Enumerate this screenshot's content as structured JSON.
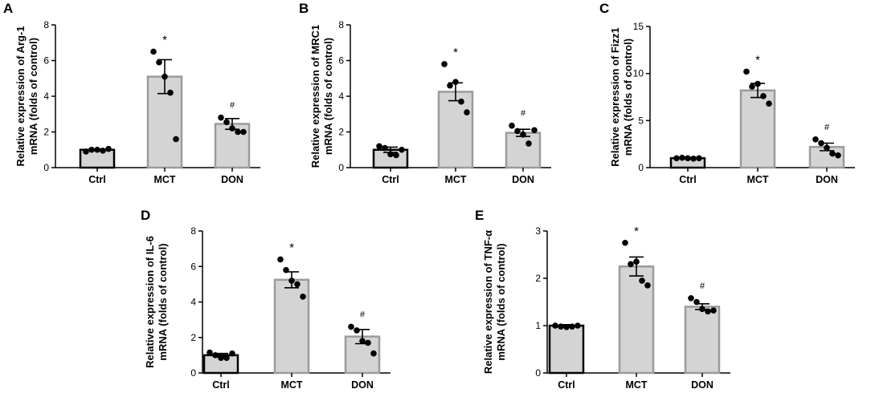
{
  "chart_data": [
    {
      "type": "bar",
      "panel": "A",
      "ylabel_line1": "Relative expression of Arg-1",
      "ylabel_line2": "mRNA (folds of control)",
      "categories": [
        "Ctrl",
        "MCT",
        "DON"
      ],
      "ylim": [
        0,
        8
      ],
      "yticks": [
        "0",
        "2",
        "4",
        "6",
        "8"
      ],
      "means": [
        1.0,
        5.1,
        2.45
      ],
      "sem": [
        0.05,
        0.95,
        0.3
      ],
      "points": [
        [
          0.9,
          1.0,
          1.0,
          0.95,
          1.05
        ],
        [
          6.5,
          5.9,
          5.1,
          4.2,
          1.6
        ],
        [
          2.8,
          2.55,
          2.2,
          2.0,
          2.0
        ]
      ],
      "annotations": [
        "",
        "*",
        "#"
      ],
      "bar_edge_colors": [
        "#000000",
        "#9b9b9b",
        "#9b9b9b"
      ]
    },
    {
      "type": "bar",
      "panel": "B",
      "ylabel_line1": "Relative expression of MRC1",
      "ylabel_line2": "mRNA (folds of control)",
      "categories": [
        "Ctrl",
        "MCT",
        "DON"
      ],
      "ylim": [
        0,
        8
      ],
      "yticks": [
        "0",
        "2",
        "4",
        "6",
        "8"
      ],
      "means": [
        1.0,
        4.25,
        1.95
      ],
      "sem": [
        0.15,
        0.5,
        0.2
      ],
      "points": [
        [
          1.2,
          1.1,
          0.75,
          0.7,
          1.0
        ],
        [
          5.8,
          4.6,
          4.8,
          3.7,
          3.1
        ],
        [
          2.35,
          2.05,
          1.85,
          1.35,
          2.1
        ]
      ],
      "annotations": [
        "",
        "*",
        "#"
      ],
      "bar_edge_colors": [
        "#000000",
        "#9b9b9b",
        "#9b9b9b"
      ]
    },
    {
      "type": "bar",
      "panel": "C",
      "ylabel_line1": "Relative expression of Fizz1",
      "ylabel_line2": "mRNA (folds of control)",
      "categories": [
        "Ctrl",
        "MCT",
        "DON"
      ],
      "ylim": [
        0,
        15
      ],
      "yticks": [
        "0",
        "5",
        "10",
        "15"
      ],
      "means": [
        1.0,
        8.2,
        2.2
      ],
      "sem": [
        0.05,
        0.75,
        0.4
      ],
      "points": [
        [
          1.0,
          1.05,
          1.0,
          0.95,
          1.0
        ],
        [
          10.2,
          8.6,
          8.9,
          7.6,
          6.8
        ],
        [
          3.0,
          2.6,
          2.1,
          1.5,
          1.3
        ]
      ],
      "annotations": [
        "",
        "*",
        "#"
      ],
      "bar_edge_colors": [
        "#000000",
        "#9b9b9b",
        "#9b9b9b"
      ]
    },
    {
      "type": "bar",
      "panel": "D",
      "ylabel_line1": "Relative expression of IL-6",
      "ylabel_line2": "mRNA (folds of control)",
      "categories": [
        "Ctrl",
        "MCT",
        "DON"
      ],
      "ylim": [
        0,
        8
      ],
      "yticks": [
        "0",
        "2",
        "4",
        "6",
        "8"
      ],
      "means": [
        1.0,
        5.25,
        2.05
      ],
      "sem": [
        0.1,
        0.45,
        0.4
      ],
      "points": [
        [
          1.15,
          1.0,
          0.85,
          0.85,
          1.1
        ],
        [
          6.4,
          5.8,
          5.2,
          5.0,
          4.3
        ],
        [
          2.6,
          2.4,
          1.8,
          1.7,
          1.1
        ]
      ],
      "annotations": [
        "",
        "*",
        "#"
      ],
      "bar_edge_colors": [
        "#000000",
        "#9b9b9b",
        "#9b9b9b"
      ]
    },
    {
      "type": "bar",
      "panel": "E",
      "ylabel_line1": "Relative expression of TNF-α",
      "ylabel_line2": "mRNA (folds of control)",
      "categories": [
        "Ctrl",
        "MCT",
        "DON"
      ],
      "ylim": [
        0,
        3
      ],
      "yticks": [
        "0",
        "1",
        "2",
        "3"
      ],
      "means": [
        1.0,
        2.25,
        1.4
      ],
      "sem": [
        0.02,
        0.2,
        0.06
      ],
      "points": [
        [
          1.0,
          0.98,
          0.97,
          0.98,
          1.0
        ],
        [
          2.75,
          2.3,
          2.35,
          1.95,
          1.85
        ],
        [
          1.58,
          1.5,
          1.35,
          1.3,
          1.32
        ]
      ],
      "annotations": [
        "",
        "*",
        "#"
      ],
      "bar_edge_colors": [
        "#000000",
        "#9b9b9b",
        "#9b9b9b"
      ]
    }
  ]
}
